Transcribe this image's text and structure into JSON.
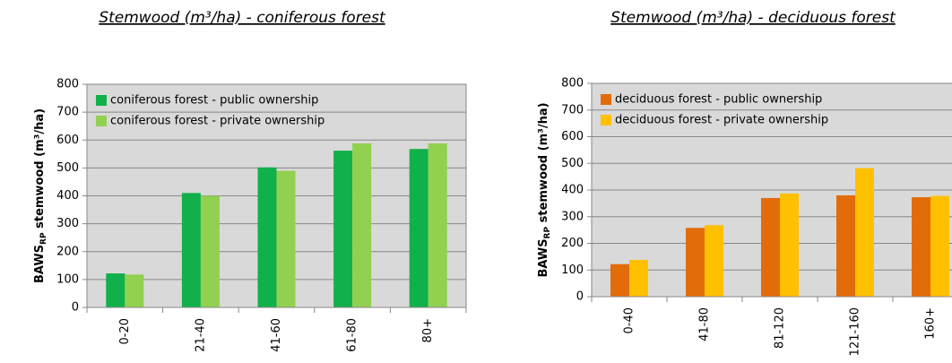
{
  "chart_data": [
    {
      "type": "bar",
      "title": "Stemwood (m³/ha) - coniferous forest",
      "ylabel": {
        "main": "BAWS",
        "subscript": "RP",
        "rest": " stemwood (m³/ha)"
      },
      "categories": [
        "0-20",
        "21-40",
        "41-60",
        "61-80",
        "80+"
      ],
      "series": [
        {
          "name": "coniferous forest - public ownership",
          "color": "#12b04a",
          "values": [
            122,
            410,
            502,
            562,
            568
          ]
        },
        {
          "name": "coniferous forest - private ownership",
          "color": "#92d050",
          "values": [
            118,
            400,
            490,
            588,
            588
          ]
        }
      ],
      "ylim": [
        0,
        800
      ],
      "yticks": [
        0,
        100,
        200,
        300,
        400,
        500,
        600,
        700,
        800
      ],
      "grid": true,
      "legend": "top-left"
    },
    {
      "type": "bar",
      "title": "Stemwood (m³/ha) - deciduous forest",
      "ylabel": {
        "main": "BAWS",
        "subscript": "RP",
        "rest": " stemwood (m³/ha)"
      },
      "categories": [
        "0-40",
        "41-80",
        "81-120",
        "121-160",
        "160+"
      ],
      "series": [
        {
          "name": "deciduous forest - public ownership",
          "color": "#e36c0a",
          "values": [
            122,
            258,
            370,
            380,
            373
          ]
        },
        {
          "name": "deciduous forest - private ownership",
          "color": "#ffc000",
          "values": [
            138,
            268,
            387,
            482,
            378
          ]
        }
      ],
      "ylim": [
        0,
        800
      ],
      "yticks": [
        0,
        100,
        200,
        300,
        400,
        500,
        600,
        700,
        800
      ],
      "grid": true,
      "legend": "top-left"
    }
  ]
}
